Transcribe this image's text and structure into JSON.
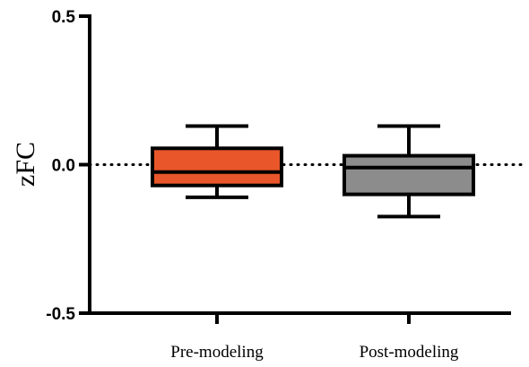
{
  "chart_data": {
    "type": "box",
    "title": "",
    "xlabel": "",
    "ylabel": "zFC",
    "ylim": [
      -0.5,
      0.5
    ],
    "yticks": [
      -0.5,
      0.0,
      0.5
    ],
    "ytick_labels": [
      "-0.5",
      "0.0",
      "0.5"
    ],
    "reference_line": {
      "y": 0.0,
      "style": "dotted"
    },
    "grid": false,
    "legend": "none",
    "categories": [
      "Pre-modeling",
      "Post-modeling"
    ],
    "series": [
      {
        "category": "Pre-modeling",
        "whisker_low": -0.11,
        "q1": -0.07,
        "median": -0.025,
        "q3": 0.055,
        "whisker_high": 0.13,
        "color": "#E8562A"
      },
      {
        "category": "Post-modeling",
        "whisker_low": -0.175,
        "q1": -0.1,
        "median": -0.01,
        "q3": 0.03,
        "whisker_high": 0.13,
        "color": "#8C8C8C"
      }
    ]
  }
}
